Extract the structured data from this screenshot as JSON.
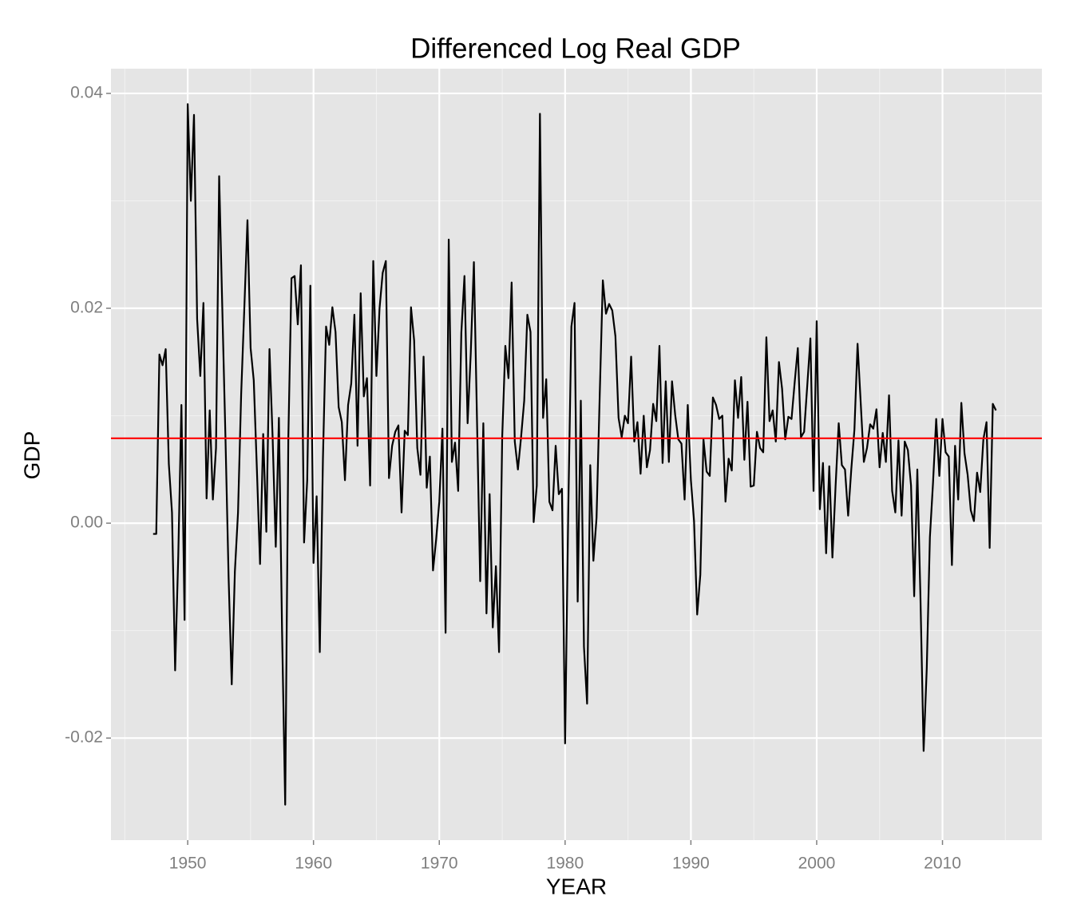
{
  "chart_data": {
    "type": "line",
    "title": "Differenced Log Real GDP",
    "x_label": "YEAR",
    "y_label": "GDP",
    "x": [
      1947.25,
      1947.5,
      1947.75,
      1948,
      1948.25,
      1948.5,
      1948.75,
      1949,
      1949.25,
      1949.5,
      1949.75,
      1950,
      1950.25,
      1950.5,
      1950.75,
      1951,
      1951.25,
      1951.5,
      1951.75,
      1952,
      1952.25,
      1952.5,
      1952.75,
      1953,
      1953.25,
      1953.5,
      1953.75,
      1954,
      1954.25,
      1954.5,
      1954.75,
      1955,
      1955.25,
      1955.5,
      1955.75,
      1956,
      1956.25,
      1956.5,
      1956.75,
      1957,
      1957.25,
      1957.5,
      1957.75,
      1958,
      1958.25,
      1958.5,
      1958.75,
      1959,
      1959.25,
      1959.5,
      1959.75,
      1960,
      1960.25,
      1960.5,
      1960.75,
      1961,
      1961.25,
      1961.5,
      1961.75,
      1962,
      1962.25,
      1962.5,
      1962.75,
      1963,
      1963.25,
      1963.5,
      1963.75,
      1964,
      1964.25,
      1964.5,
      1964.75,
      1965,
      1965.25,
      1965.5,
      1965.75,
      1966,
      1966.25,
      1966.5,
      1966.75,
      1967,
      1967.25,
      1967.5,
      1967.75,
      1968,
      1968.25,
      1968.5,
      1968.75,
      1969,
      1969.25,
      1969.5,
      1969.75,
      1970,
      1970.25,
      1970.5,
      1970.75,
      1971,
      1971.25,
      1971.5,
      1971.75,
      1972,
      1972.25,
      1972.5,
      1972.75,
      1973,
      1973.25,
      1973.5,
      1973.75,
      1974,
      1974.25,
      1974.5,
      1974.75,
      1975,
      1975.25,
      1975.5,
      1975.75,
      1976,
      1976.25,
      1976.5,
      1976.75,
      1977,
      1977.25,
      1977.5,
      1977.75,
      1978,
      1978.25,
      1978.5,
      1978.75,
      1979,
      1979.25,
      1979.5,
      1979.75,
      1980,
      1980.25,
      1980.5,
      1980.75,
      1981,
      1981.25,
      1981.5,
      1981.75,
      1982,
      1982.25,
      1982.5,
      1982.75,
      1983,
      1983.25,
      1983.5,
      1983.75,
      1984,
      1984.25,
      1984.5,
      1984.75,
      1985,
      1985.25,
      1985.5,
      1985.75,
      1986,
      1986.25,
      1986.5,
      1986.75,
      1987,
      1987.25,
      1987.5,
      1987.75,
      1988,
      1988.25,
      1988.5,
      1988.75,
      1989,
      1989.25,
      1989.5,
      1989.75,
      1990,
      1990.25,
      1990.5,
      1990.75,
      1991,
      1991.25,
      1991.5,
      1991.75,
      1992,
      1992.25,
      1992.5,
      1992.75,
      1993,
      1993.25,
      1993.5,
      1993.75,
      1994,
      1994.25,
      1994.5,
      1994.75,
      1995,
      1995.25,
      1995.5,
      1995.75,
      1996,
      1996.25,
      1996.5,
      1996.75,
      1997,
      1997.25,
      1997.5,
      1997.75,
      1998,
      1998.25,
      1998.5,
      1998.75,
      1999,
      1999.25,
      1999.5,
      1999.75,
      2000,
      2000.25,
      2000.5,
      2000.75,
      2001,
      2001.25,
      2001.5,
      2001.75,
      2002,
      2002.25,
      2002.5,
      2002.75,
      2003,
      2003.25,
      2003.5,
      2003.75,
      2004,
      2004.25,
      2004.5,
      2004.75,
      2005,
      2005.25,
      2005.5,
      2005.75,
      2006,
      2006.25,
      2006.5,
      2006.75,
      2007,
      2007.25,
      2007.5,
      2007.75,
      2008,
      2008.25,
      2008.5,
      2008.75,
      2009,
      2009.25,
      2009.5,
      2009.75,
      2010,
      2010.25,
      2010.5,
      2010.75,
      2011,
      2011.25,
      2011.5,
      2011.75,
      2012,
      2012.25,
      2012.5,
      2012.75,
      2013,
      2013.25,
      2013.5,
      2013.75,
      2014,
      2014.25
    ],
    "series": [
      {
        "color": "#000000",
        "values": [
          -0.001,
          -0.001,
          0.0157,
          0.0147,
          0.0162,
          0.0055,
          0.001,
          -0.0137,
          -0.003,
          0.011,
          -0.009,
          0.039,
          0.03,
          0.038,
          0.019,
          0.0137,
          0.0205,
          0.0023,
          0.0105,
          0.0022,
          0.007,
          0.0323,
          0.02,
          0.008,
          -0.005,
          -0.015,
          -0.0045,
          0.001,
          0.012,
          0.02,
          0.0282,
          0.0163,
          0.0133,
          0.005,
          -0.0038,
          0.0083,
          -0.0008,
          0.0162,
          0.008,
          -0.0022,
          0.0098,
          -0.01,
          -0.0262,
          0.008,
          0.0228,
          0.023,
          0.0185,
          0.024,
          -0.0018,
          0.004,
          0.0221,
          -0.0037,
          0.0025,
          -0.012,
          0.006,
          0.0183,
          0.0166,
          0.0201,
          0.0178,
          0.0108,
          0.0094,
          0.004,
          0.011,
          0.013,
          0.0194,
          0.0072,
          0.0214,
          0.0118,
          0.0135,
          0.0035,
          0.0244,
          0.0137,
          0.02,
          0.0233,
          0.0244,
          0.0042,
          0.0072,
          0.0085,
          0.0091,
          0.001,
          0.0086,
          0.0082,
          0.0201,
          0.017,
          0.007,
          0.0045,
          0.0155,
          0.0033,
          0.0062,
          -0.0044,
          -0.0015,
          0.002,
          0.0088,
          -0.0102,
          0.0264,
          0.0057,
          0.0075,
          0.003,
          0.0177,
          0.023,
          0.0093,
          0.0158,
          0.0243,
          0.0094,
          -0.0054,
          0.0093,
          -0.0084,
          0.0027,
          -0.0097,
          -0.004,
          -0.012,
          0.008,
          0.0165,
          0.0135,
          0.0224,
          0.0076,
          0.005,
          0.008,
          0.0114,
          0.0194,
          0.0178,
          0.0001,
          0.0035,
          0.0381,
          0.0098,
          0.0134,
          0.002,
          0.0012,
          0.0072,
          0.0027,
          0.0032,
          -0.0205,
          0.0011,
          0.0183,
          0.0205,
          -0.0073,
          0.0114,
          -0.0115,
          -0.0168,
          0.0054,
          -0.0035,
          0.0005,
          0.0118,
          0.0226,
          0.0195,
          0.0204,
          0.0198,
          0.0174,
          0.0098,
          0.008,
          0.01,
          0.0093,
          0.0155,
          0.0076,
          0.0094,
          0.0046,
          0.01,
          0.0052,
          0.0068,
          0.0111,
          0.0095,
          0.0165,
          0.0056,
          0.0132,
          0.0057,
          0.0132,
          0.0101,
          0.0078,
          0.0074,
          0.0022,
          0.011,
          0.004,
          0.0002,
          -0.0085,
          -0.0048,
          0.0078,
          0.0048,
          0.0044,
          0.0117,
          0.011,
          0.0097,
          0.01,
          0.002,
          0.006,
          0.0049,
          0.0133,
          0.0098,
          0.0136,
          0.0059,
          0.0113,
          0.0034,
          0.0035,
          0.0085,
          0.007,
          0.0066,
          0.0173,
          0.0095,
          0.0105,
          0.0076,
          0.015,
          0.0125,
          0.0078,
          0.0099,
          0.0097,
          0.0131,
          0.0163,
          0.008,
          0.0085,
          0.0128,
          0.0172,
          0.003,
          0.0188,
          0.0013,
          0.0056,
          -0.0028,
          0.0053,
          -0.0032,
          0.0034,
          0.0093,
          0.0054,
          0.005,
          0.0007,
          0.005,
          0.0087,
          0.0167,
          0.0112,
          0.0057,
          0.007,
          0.0092,
          0.0088,
          0.0106,
          0.0052,
          0.0084,
          0.0057,
          0.0119,
          0.003,
          0.001,
          0.0077,
          0.0007,
          0.0076,
          0.0068,
          0.0035,
          -0.0068,
          0.005,
          -0.007,
          -0.0212,
          -0.0135,
          -0.0013,
          0.0038,
          0.0097,
          0.0044,
          0.0097,
          0.0066,
          0.0062,
          -0.0039,
          0.0072,
          0.0022,
          0.0112,
          0.0065,
          0.0045,
          0.0012,
          0.0002,
          0.0047,
          0.0029,
          0.0078,
          0.0094,
          -0.0023,
          0.0111,
          0.0105
        ]
      }
    ],
    "mean_line": {
      "value": 0.0079,
      "color": "#ff0000"
    },
    "xlim": [
      1943.9,
      2017.9
    ],
    "ylim": [
      -0.0295,
      0.0423
    ],
    "xticks": [
      1950,
      1960,
      1970,
      1980,
      1990,
      2000,
      2010
    ],
    "yticks": [
      -0.02,
      {
        "value": 0,
        "label": "0.00"
      },
      0.02,
      0.04
    ],
    "minor_xticks": [
      1945,
      1955,
      1965,
      1975,
      1985,
      1995,
      2005,
      2015
    ],
    "minor_yticks": [
      -0.01,
      0.01,
      0.03
    ],
    "grid": true
  }
}
